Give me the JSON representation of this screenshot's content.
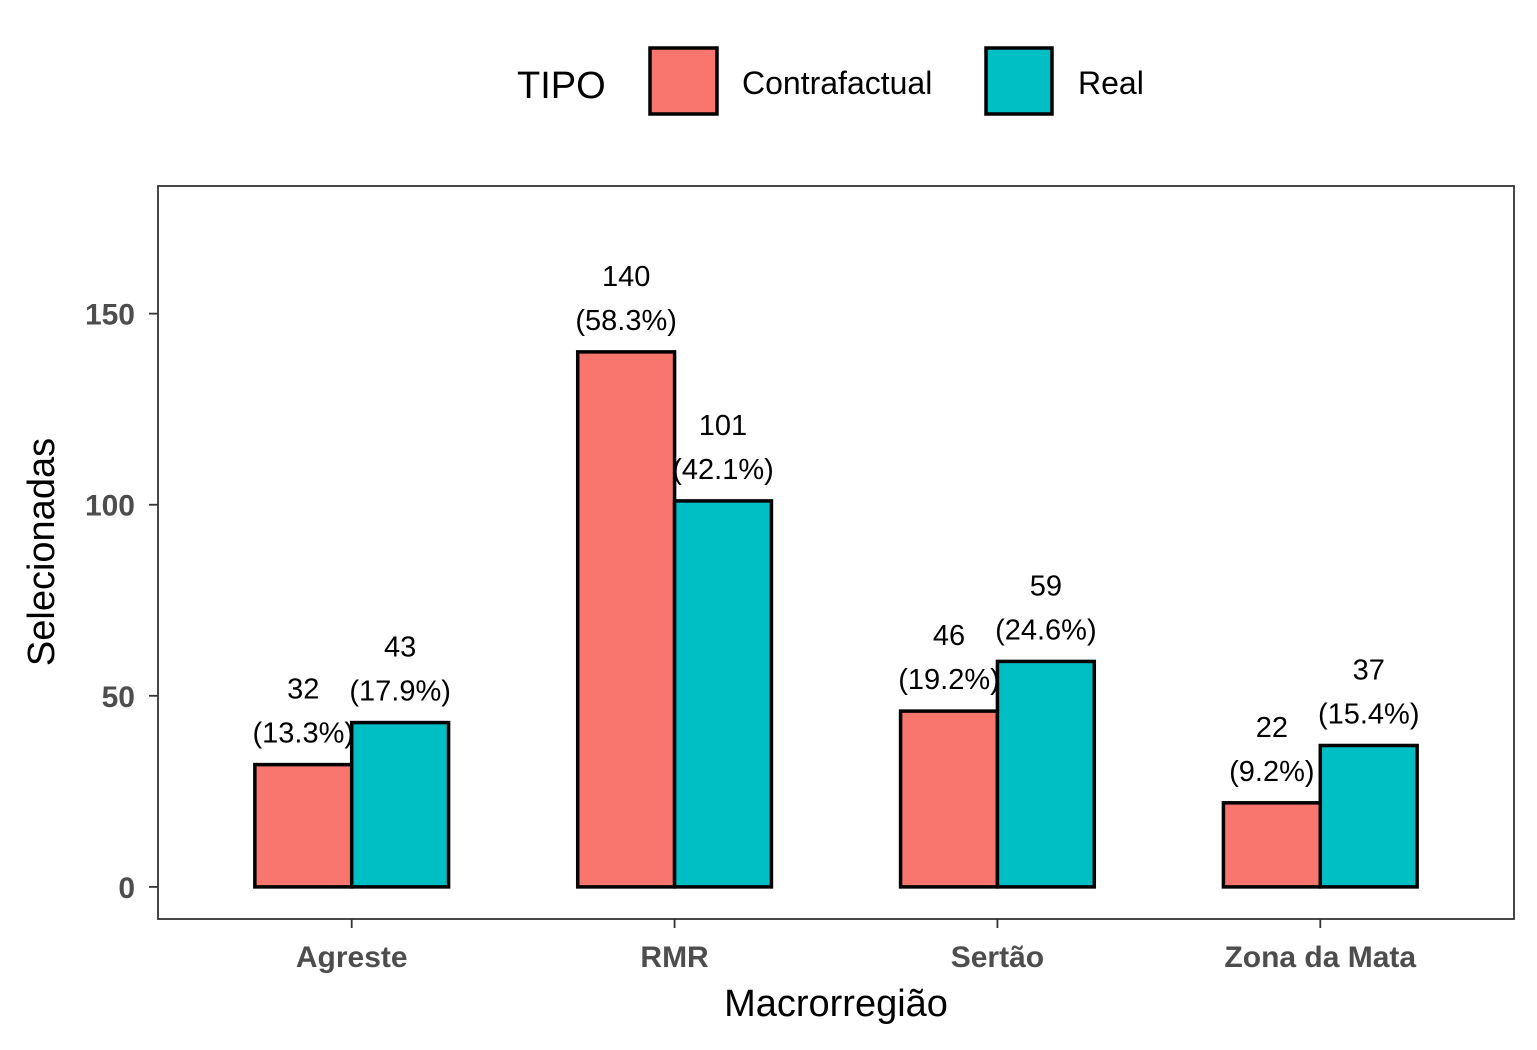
{
  "chart_data": {
    "type": "bar",
    "categories": [
      "Agreste",
      "RMR",
      "Sertão",
      "Zona da Mata"
    ],
    "series": [
      {
        "name": "Contrafactual",
        "color": "#F8766D",
        "values": [
          32,
          140,
          46,
          22
        ],
        "labels": [
          [
            "32",
            "(13.3%)"
          ],
          [
            "140",
            "(58.3%)"
          ],
          [
            "46",
            "(19.2%)"
          ],
          [
            "22",
            "(9.2%)"
          ]
        ]
      },
      {
        "name": "Real",
        "color": "#00BFC4",
        "values": [
          43,
          101,
          59,
          37
        ],
        "labels": [
          [
            "43",
            "(17.9%)"
          ],
          [
            "101",
            "(42.1%)"
          ],
          [
            "59",
            "(24.6%)"
          ],
          [
            "37",
            "(15.4%)"
          ]
        ]
      }
    ],
    "legend_title": "TIPO",
    "legend_position": "top",
    "xlabel": "Macrorregião",
    "ylabel": "Selecionadas",
    "yticks": [
      0,
      50,
      100,
      150
    ],
    "ylim": [
      -8.4,
      183.4
    ],
    "grid": false
  }
}
